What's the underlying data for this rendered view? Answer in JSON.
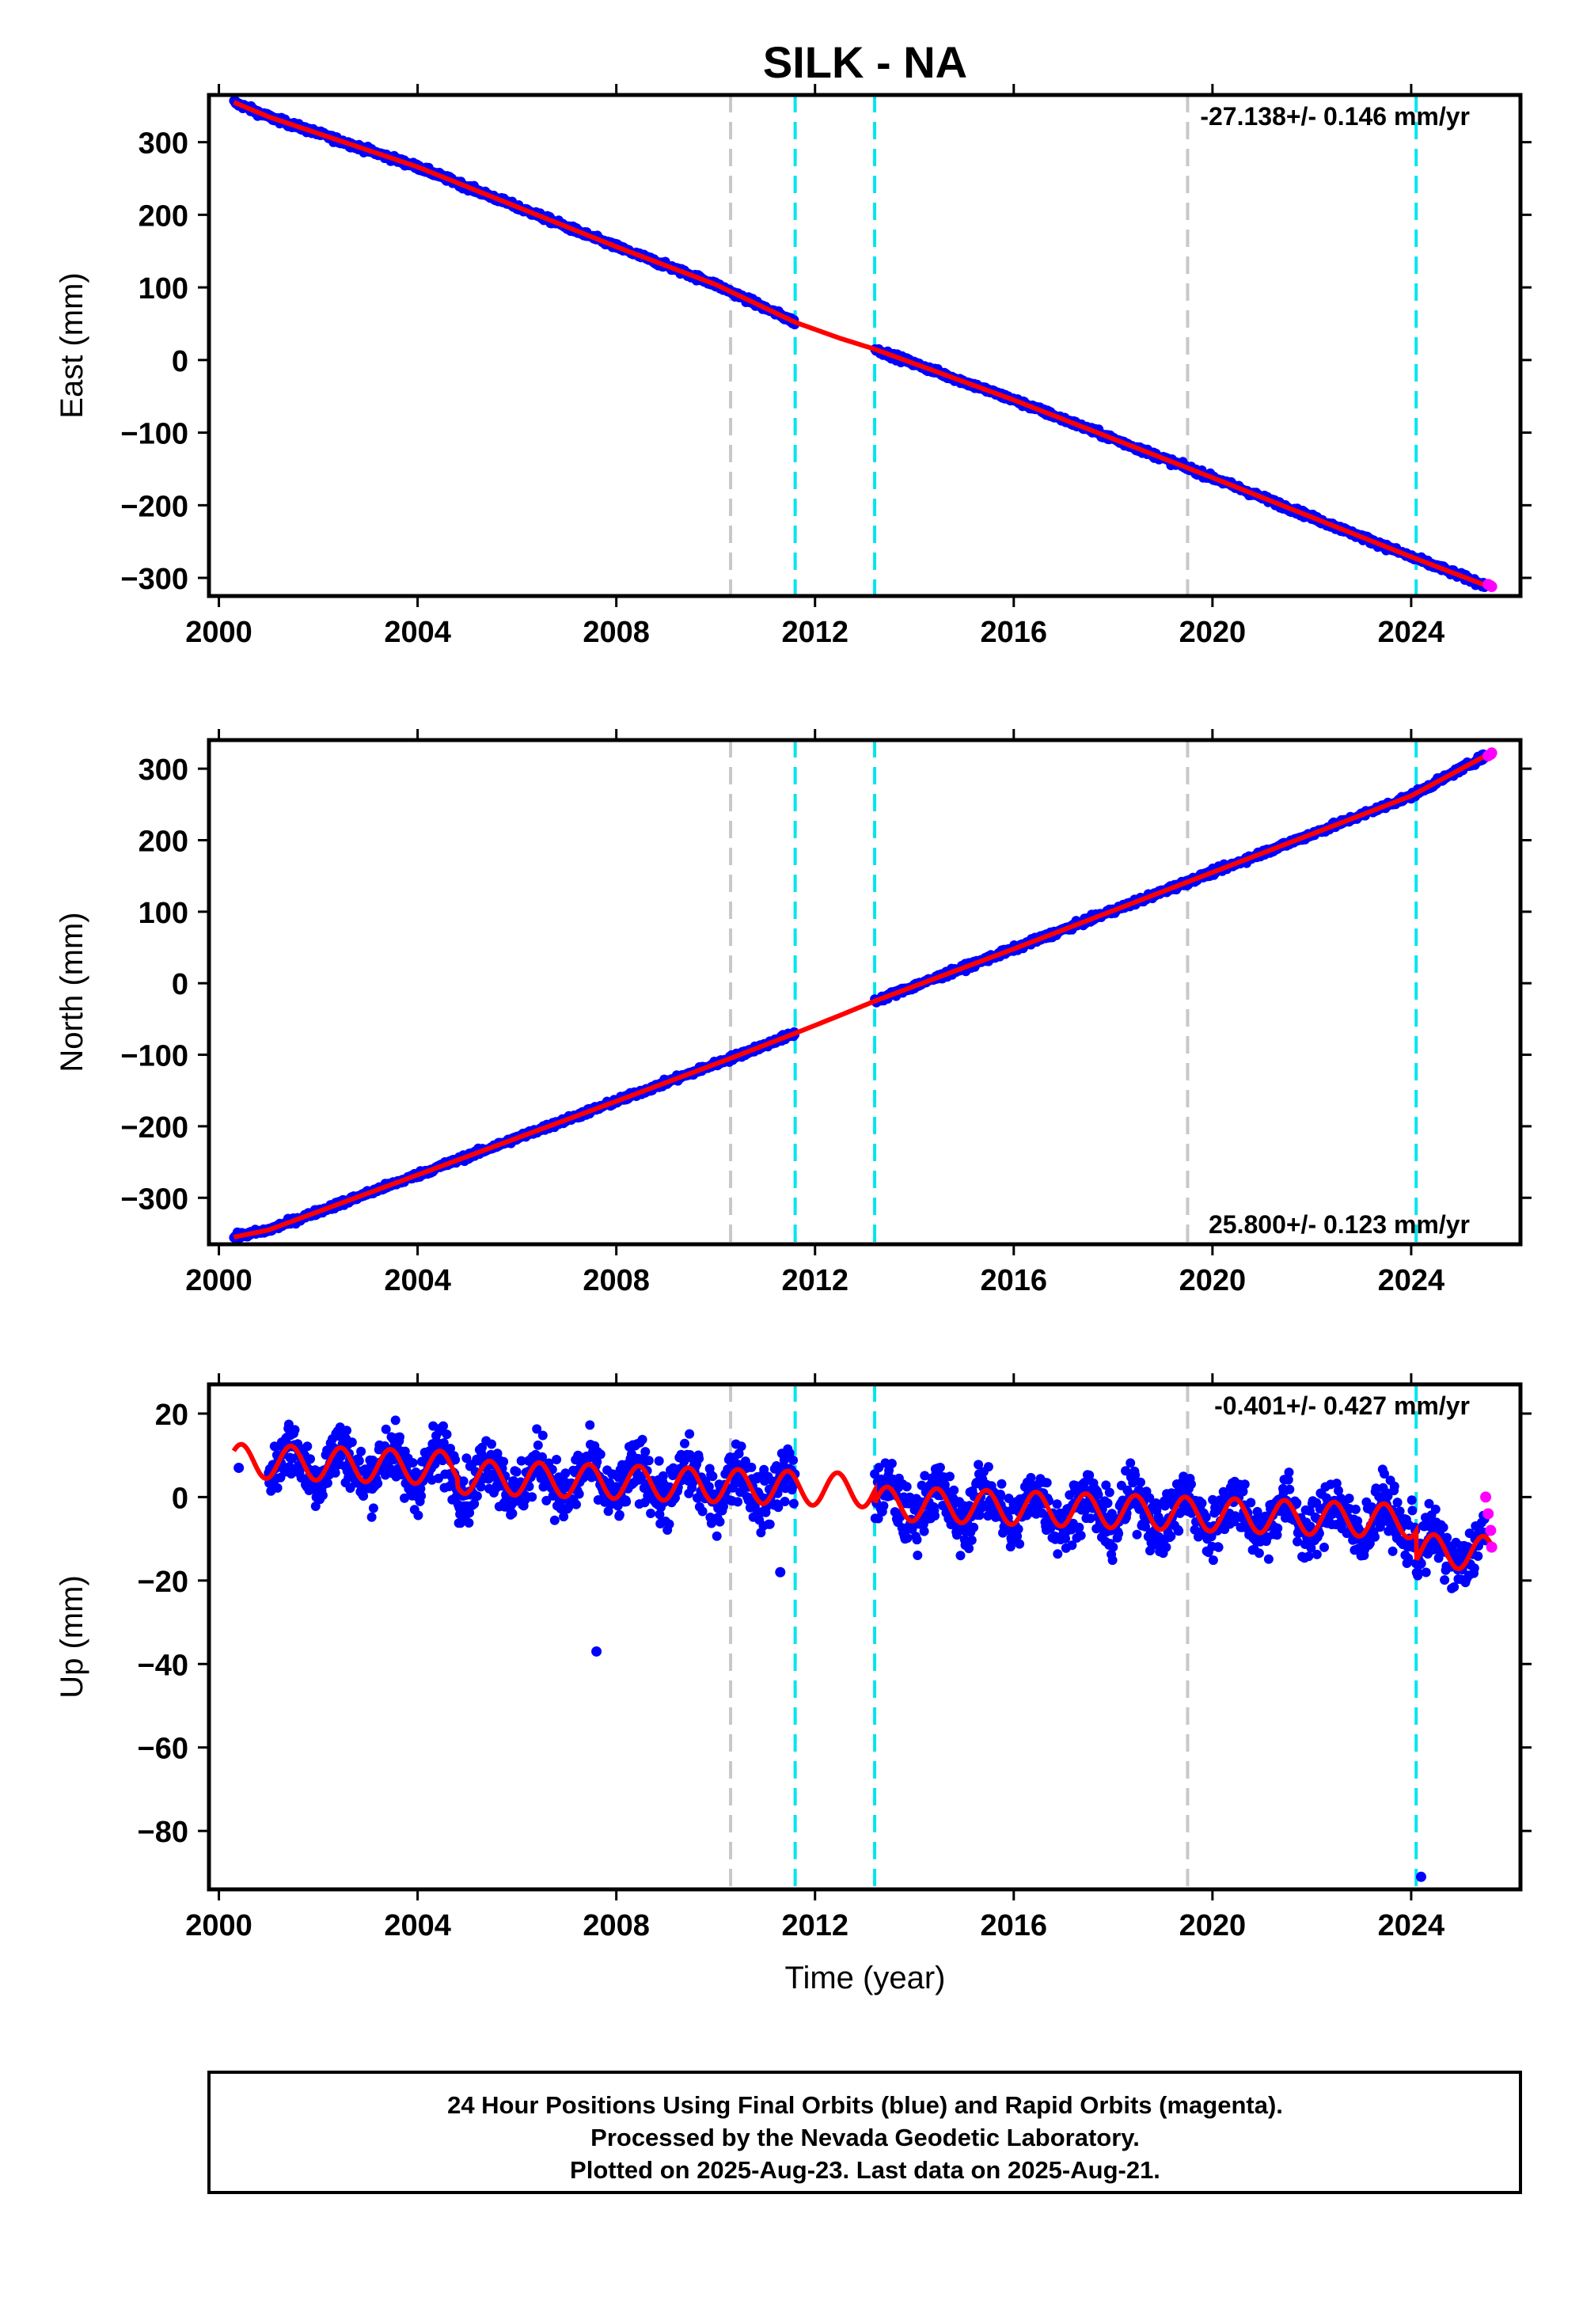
{
  "chart_data": {
    "type": "scatter",
    "title": "SILK - NA",
    "xlabel": "Time (year)",
    "xlim": [
      1999.8,
      2026.2
    ],
    "xticks": [
      2000,
      2004,
      2008,
      2012,
      2016,
      2020,
      2024
    ],
    "xtick_labels": [
      "2000",
      "2004",
      "2008",
      "2012",
      "2016",
      "2020",
      "2024"
    ],
    "vertical_lines": [
      {
        "x": 2010.3,
        "color": "#c8c8c8"
      },
      {
        "x": 2011.6,
        "color": "#00e5ee"
      },
      {
        "x": 2013.2,
        "color": "#00e5ee"
      },
      {
        "x": 2019.5,
        "color": "#c8c8c8"
      },
      {
        "x": 2024.1,
        "color": "#00e5ee"
      }
    ],
    "colors": {
      "final_orbits": "#0000ff",
      "rapid_orbits": "#ff00ff",
      "model": "#ff0000"
    },
    "panels": [
      {
        "name": "east",
        "ylabel": "East (mm)",
        "ylim": [
          -325,
          365
        ],
        "yticks": [
          300,
          200,
          100,
          0,
          -100,
          -200,
          -300
        ],
        "ytick_labels": [
          "300",
          "200",
          "100",
          "0",
          "−100",
          "−200",
          "−300"
        ],
        "rate": "-27.138+/- 0.146 mm/yr",
        "rate_position": "top-right",
        "model": {
          "x": [
            2000.3,
            2001.0,
            2004.0,
            2008.0,
            2010.0,
            2011.6,
            2012.5,
            2013.2,
            2016.0,
            2020.0,
            2024.0,
            2025.6
          ],
          "y": [
            355,
            335,
            266,
            156,
            104,
            52,
            30,
            15,
            -55,
            -162,
            -271,
            -313
          ]
        },
        "final_orbits": {
          "x_range": [
            2000.3,
            2011.6
          ],
          "x_range2": [
            2013.2,
            2025.5
          ],
          "noise_mm": 3
        },
        "rapid_orbits": {
          "x": [
            2025.55,
            2025.6,
            2025.62
          ],
          "y": [
            -309,
            -311,
            -312
          ]
        }
      },
      {
        "name": "north",
        "ylabel": "North (mm)",
        "ylim": [
          -365,
          340
        ],
        "yticks": [
          300,
          200,
          100,
          0,
          -100,
          -200,
          -300
        ],
        "ytick_labels": [
          "300",
          "200",
          "100",
          "0",
          "−100",
          "−200",
          "−300"
        ],
        "rate": "25.800+/- 0.123 mm/yr",
        "rate_position": "bottom-right",
        "model": {
          "x": [
            2000.3,
            2001.0,
            2004.0,
            2008.0,
            2010.3,
            2011.6,
            2012.5,
            2013.2,
            2016.0,
            2020.0,
            2024.0,
            2025.6
          ],
          "y": [
            -355,
            -345,
            -268,
            -165,
            -105,
            -70,
            -45,
            -25,
            48,
            155,
            262,
            322
          ]
        },
        "final_orbits": {
          "x_range": [
            2000.3,
            2011.6
          ],
          "x_range2": [
            2013.2,
            2025.5
          ],
          "noise_mm": 3
        },
        "rapid_orbits": {
          "x": [
            2025.55,
            2025.6,
            2025.62
          ],
          "y": [
            318,
            320,
            322
          ]
        }
      },
      {
        "name": "up",
        "ylabel": "Up (mm)",
        "ylim": [
          -94,
          27
        ],
        "yticks": [
          20,
          0,
          -20,
          -40,
          -60,
          -80
        ],
        "ytick_labels": [
          "20",
          "0",
          "−20",
          "−40",
          "−60",
          "−80"
        ],
        "rate": "-0.401+/- 0.427 mm/yr",
        "rate_position": "top-right",
        "model": {
          "amplitude_mm": 4,
          "period_year": 1,
          "trend_mm_per_year": -0.401,
          "offsets": [
            {
              "from": 2000.3,
              "to": 2004.8,
              "level": 4
            },
            {
              "from": 2004.8,
              "to": 2013.2,
              "level": 2
            },
            {
              "from": 2013.2,
              "to": 2024.1,
              "level": -1
            },
            {
              "from": 2024.1,
              "to": 2025.6,
              "level": -8
            }
          ]
        },
        "final_orbits": {
          "x_range": [
            2001.0,
            2011.6
          ],
          "x_range2": [
            2013.2,
            2025.5
          ],
          "noise_mm": 5
        },
        "rapid_orbits": {
          "x": [
            2025.5,
            2025.55,
            2025.6,
            2025.62
          ],
          "y": [
            0,
            -4,
            -8,
            -12
          ]
        },
        "outliers": [
          {
            "x": 2007.6,
            "y": -37
          },
          {
            "x": 2024.2,
            "y": -91
          },
          {
            "x": 2000.4,
            "y": 7
          },
          {
            "x": 2011.3,
            "y": -18
          }
        ]
      }
    ]
  },
  "footer": {
    "line1": "24 Hour Positions Using Final Orbits (blue) and Rapid Orbits (magenta).",
    "line2": "Processed by the Nevada Geodetic Laboratory.",
    "line3": "Plotted on 2025-Aug-23. Last data on 2025-Aug-21."
  }
}
